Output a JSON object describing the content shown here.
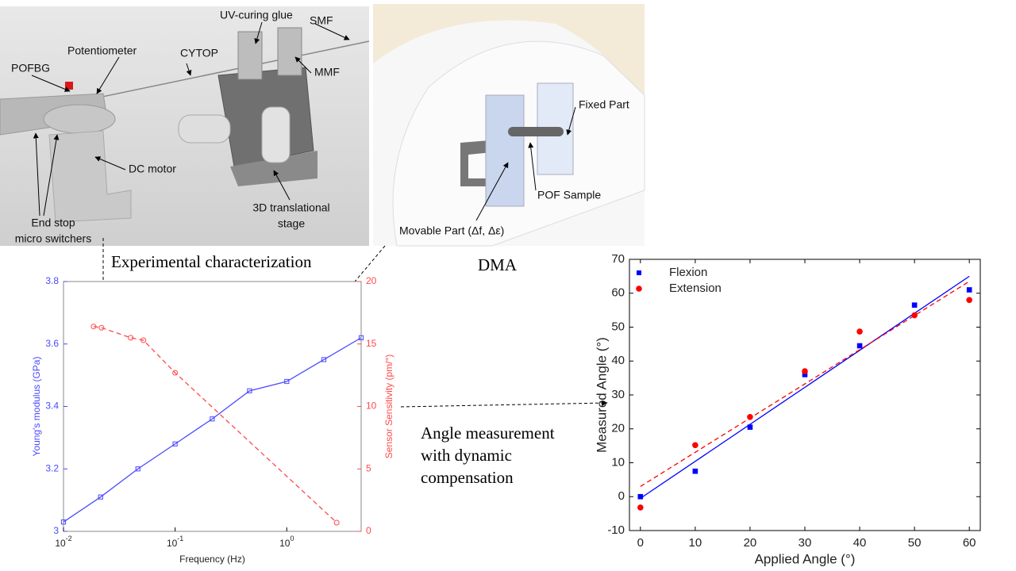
{
  "panels": {
    "setup": {
      "labels": [
        {
          "lines": [
            "UV-curing glue"
          ]
        },
        {
          "lines": [
            "SMF"
          ]
        },
        {
          "lines": [
            "Potentiometer"
          ]
        },
        {
          "lines": [
            "CYTOP"
          ]
        },
        {
          "lines": [
            "POFBG"
          ]
        },
        {
          "lines": [
            "MMF"
          ]
        },
        {
          "lines": [
            "DC motor"
          ]
        },
        {
          "lines": [
            "End stop",
            "micro switchers"
          ]
        },
        {
          "lines": [
            "3D translational",
            "stage"
          ]
        }
      ]
    },
    "dma": {
      "labels": [
        {
          "lines": [
            "Fixed Part"
          ]
        },
        {
          "lines": [
            "POF Sample"
          ]
        },
        {
          "lines": [
            "Movable Part (Δf, Δε)"
          ]
        }
      ]
    }
  },
  "captions": {
    "characterization": [
      "Experimental characterization"
    ],
    "dma": [
      "DMA"
    ],
    "angle": [
      "Angle measurement",
      "with dynamic",
      "compensation"
    ]
  },
  "chart_data": [
    {
      "type": "line",
      "xlabel": "Frequency (Hz)",
      "ylabel": "Young's modulus (GPa)",
      "y2label": "Sensor Sensitivity (pm/°)",
      "xscale": "log",
      "xlim": [
        0.01,
        4.64
      ],
      "xticks": [
        {
          "value": 0.01,
          "label": "10",
          "exponent": "-2"
        },
        {
          "value": 0.1,
          "label": "10",
          "exponent": "-1"
        },
        {
          "value": 1,
          "label": "10",
          "exponent": "0"
        }
      ],
      "ylim": [
        3,
        3.8
      ],
      "yticks": [
        3,
        3.2,
        3.4,
        3.6,
        3.8
      ],
      "y2lim": [
        0,
        20
      ],
      "y2ticks": [
        0,
        5,
        10,
        15,
        20
      ],
      "series": [
        {
          "color": "#4a4aff",
          "axis": "y",
          "marker": "square",
          "dash": false,
          "x": [
            0.01,
            0.0215,
            0.0464,
            0.1,
            0.215,
            0.464,
            1,
            2.15,
            4.64
          ],
          "values": [
            3.03,
            3.11,
            3.2,
            3.28,
            3.36,
            3.45,
            3.48,
            3.55,
            3.62
          ]
        },
        {
          "color": "#ff4a4a",
          "axis": "y2",
          "marker": "circle",
          "dash": true,
          "x": [
            0.0186,
            0.0219,
            0.04,
            0.052,
            0.1,
            2.8
          ],
          "values": [
            16.4,
            16.3,
            15.5,
            15.3,
            12.7,
            0.7
          ]
        }
      ]
    },
    {
      "type": "scatter",
      "xlabel": "Applied Angle (°)",
      "ylabel": "Measured Angle (°)",
      "xlim": [
        -2,
        62
      ],
      "xticks": [
        0,
        10,
        20,
        30,
        40,
        50,
        60
      ],
      "ylim": [
        -10,
        70
      ],
      "yticks": [
        -10,
        0,
        10,
        20,
        30,
        40,
        50,
        60,
        70
      ],
      "legend": "upper left",
      "series": [
        {
          "name": "Flexion",
          "color": "#0000ff",
          "marker": "square",
          "x": [
            0,
            10,
            20,
            30,
            40,
            50,
            60
          ],
          "values": [
            0,
            7.5,
            20.5,
            36,
            44.5,
            56.5,
            61
          ]
        },
        {
          "name": "Extension",
          "color": "#ff0000",
          "marker": "circle",
          "x": [
            0,
            10,
            20,
            30,
            40,
            50,
            60
          ],
          "values": [
            -3.2,
            15.2,
            23.5,
            37,
            48.7,
            53.5,
            58
          ]
        }
      ],
      "fits": [
        {
          "color": "#0000ff",
          "dash": false,
          "x": [
            0,
            60
          ],
          "values": [
            -0.5,
            65
          ]
        },
        {
          "color": "#ff0000",
          "dash": true,
          "x": [
            0,
            60
          ],
          "values": [
            3,
            63.5
          ]
        }
      ]
    }
  ]
}
